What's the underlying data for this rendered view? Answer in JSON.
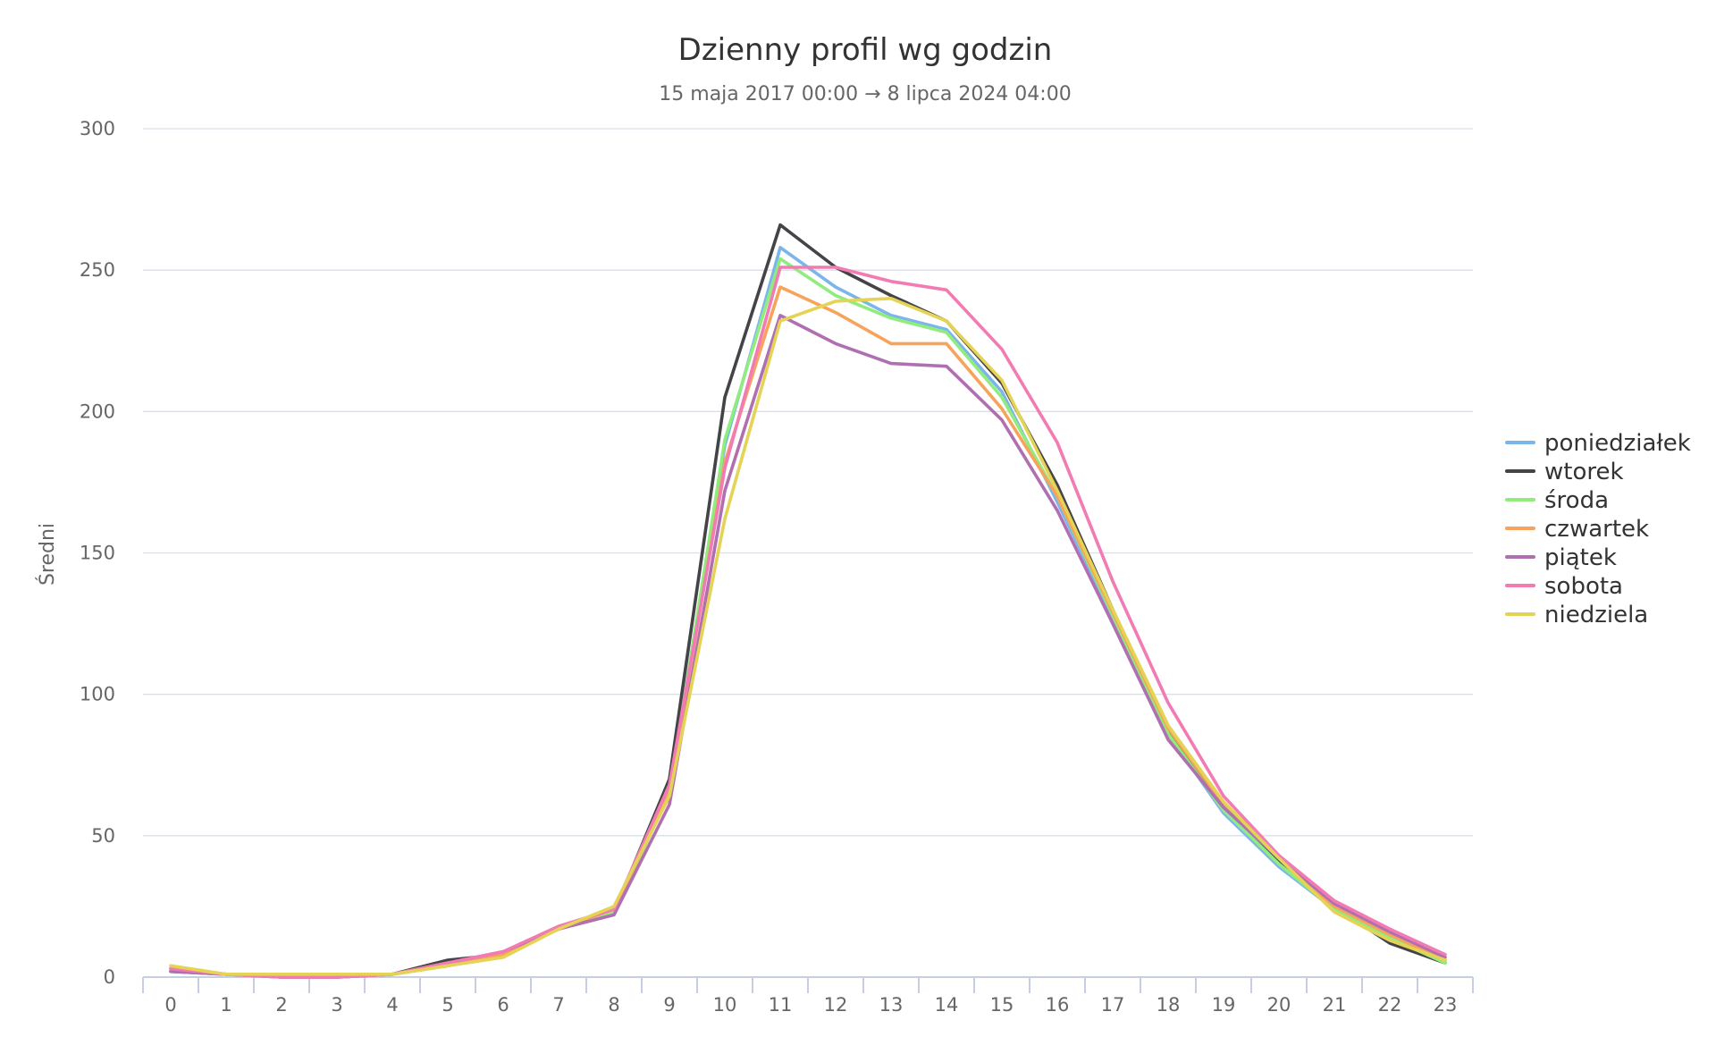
{
  "chart_data": {
    "type": "line",
    "title": "Dzienny profil wg godzin",
    "subtitle": "15 maja 2017 00:00 → 8 lipca 2024 04:00",
    "xlabel": "",
    "ylabel": "Średni",
    "ylim": [
      0,
      300
    ],
    "yticks": [
      0,
      50,
      100,
      150,
      200,
      250,
      300
    ],
    "grid": true,
    "legend_position": "right",
    "x": [
      "0",
      "1",
      "2",
      "3",
      "4",
      "5",
      "6",
      "7",
      "8",
      "9",
      "10",
      "11",
      "12",
      "13",
      "14",
      "15",
      "16",
      "17",
      "18",
      "19",
      "20",
      "21",
      "22",
      "23"
    ],
    "series": [
      {
        "name": "poniedziałek",
        "color": "#7cb5ec",
        "values": [
          3,
          1,
          0,
          0,
          1,
          4,
          8,
          17,
          23,
          66,
          188,
          258,
          244,
          234,
          229,
          207,
          168,
          127,
          86,
          58,
          39,
          24,
          14,
          6
        ]
      },
      {
        "name": "wtorek",
        "color": "#434348",
        "values": [
          2,
          1,
          0,
          0,
          1,
          6,
          8,
          17,
          23,
          70,
          205,
          266,
          251,
          241,
          232,
          210,
          174,
          130,
          87,
          60,
          41,
          25,
          12,
          5
        ]
      },
      {
        "name": "środa",
        "color": "#90ed7d",
        "values": [
          2,
          1,
          0,
          0,
          1,
          4,
          8,
          17,
          23,
          65,
          190,
          254,
          241,
          233,
          228,
          205,
          170,
          128,
          86,
          59,
          40,
          24,
          14,
          5
        ]
      },
      {
        "name": "czwartek",
        "color": "#f7a35c",
        "values": [
          3,
          1,
          0,
          0,
          1,
          5,
          8,
          17,
          24,
          65,
          182,
          244,
          235,
          224,
          224,
          201,
          170,
          129,
          88,
          61,
          42,
          25,
          15,
          6
        ]
      },
      {
        "name": "piątek",
        "color": "#b06fb1",
        "values": [
          2,
          1,
          0,
          0,
          1,
          5,
          9,
          17,
          22,
          61,
          172,
          234,
          224,
          217,
          216,
          197,
          165,
          125,
          84,
          60,
          42,
          26,
          16,
          7
        ]
      },
      {
        "name": "sobota",
        "color": "#f27bb3",
        "values": [
          3,
          1,
          0,
          0,
          1,
          5,
          9,
          18,
          24,
          68,
          180,
          251,
          251,
          246,
          243,
          222,
          189,
          140,
          97,
          64,
          43,
          27,
          17,
          8
        ]
      },
      {
        "name": "niedziela",
        "color": "#e4d354",
        "values": [
          4,
          1,
          1,
          1,
          1,
          4,
          7,
          17,
          25,
          64,
          162,
          232,
          239,
          240,
          232,
          211,
          172,
          130,
          89,
          62,
          42,
          23,
          13,
          6
        ]
      }
    ]
  }
}
